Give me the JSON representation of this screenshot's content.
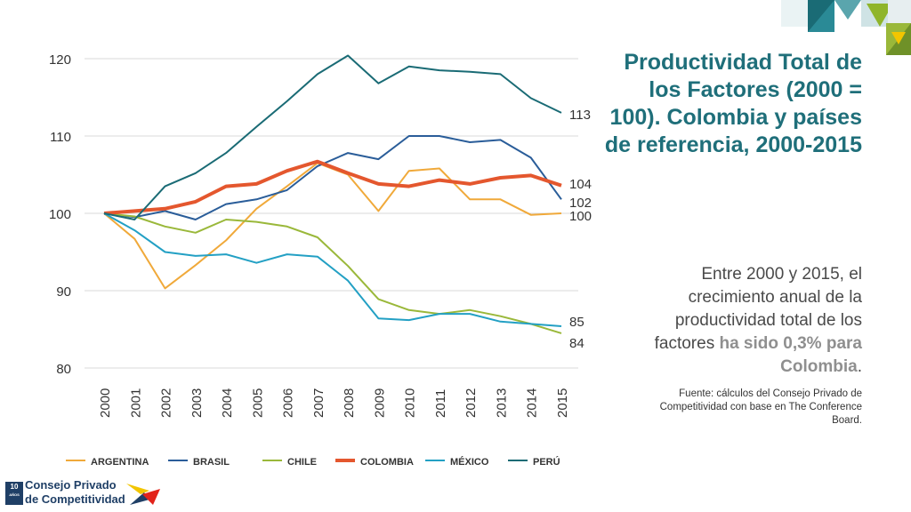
{
  "chart_data": {
    "type": "line",
    "title": "",
    "xlabel": "",
    "ylabel": "",
    "ylim": [
      80,
      120
    ],
    "yticks": [
      80,
      90,
      100,
      110,
      120
    ],
    "x": [
      "2000",
      "2001",
      "2002",
      "2003",
      "2004",
      "2005",
      "2006",
      "2007",
      "2008",
      "2009",
      "2010",
      "2011",
      "2012",
      "2013",
      "2014",
      "2015"
    ],
    "series": [
      {
        "name": "ARGENTINA",
        "color": "#f0a93a",
        "width": 2,
        "values": [
          100,
          96.7,
          90.3,
          93.3,
          96.5,
          100.6,
          103.5,
          106.5,
          105.0,
          100.3,
          105.5,
          105.8,
          101.8,
          101.8,
          99.8,
          100.0
        ]
      },
      {
        "name": "BRASIL",
        "color": "#2a5d99",
        "width": 2,
        "values": [
          100,
          99.5,
          100.3,
          99.2,
          101.2,
          101.8,
          103.0,
          106.1,
          107.8,
          107.0,
          110.0,
          110.0,
          109.2,
          109.5,
          107.2,
          101.8
        ]
      },
      {
        "name": "CHILE",
        "color": "#9ab83a",
        "width": 2,
        "values": [
          100,
          99.6,
          98.3,
          97.5,
          99.2,
          98.9,
          98.3,
          96.9,
          93.2,
          88.9,
          87.5,
          87.0,
          87.5,
          86.7,
          85.7,
          84.5
        ]
      },
      {
        "name": "COLOMBIA",
        "color": "#e4572e",
        "width": 4,
        "values": [
          100,
          100.3,
          100.6,
          101.5,
          103.5,
          103.8,
          105.5,
          106.7,
          105.2,
          103.8,
          103.5,
          104.3,
          103.8,
          104.6,
          104.9,
          103.6
        ]
      },
      {
        "name": "MÉXICO",
        "color": "#23a0c4",
        "width": 2,
        "values": [
          100,
          97.8,
          95.0,
          94.5,
          94.7,
          93.6,
          94.7,
          94.4,
          91.3,
          86.4,
          86.2,
          87.0,
          87.0,
          86.0,
          85.7,
          85.4
        ]
      },
      {
        "name": "PERÚ",
        "color": "#1a6b75",
        "width": 2,
        "values": [
          100,
          99.2,
          103.5,
          105.2,
          107.8,
          111.2,
          114.5,
          118.0,
          120.4,
          116.8,
          119.0,
          118.5,
          118.3,
          118.0,
          114.9,
          113.0
        ]
      }
    ],
    "end_labels": [
      "113",
      "104",
      "102",
      "100",
      "85",
      "84"
    ]
  },
  "title": "Productividad Total de los Factores (2000 = 100). Colombia y países de referencia, 2000-2015",
  "body": {
    "part1": "Entre 2000 y 2015, el crecimiento anual de la productividad total de los factores ",
    "highlight": "ha sido 0,3% para Colombia",
    "end": "."
  },
  "source": "Fuente: cálculos del Consejo Privado de Competitividad con base en The Conference Board.",
  "logo": {
    "badge": "10",
    "badge_sub": "AÑOS",
    "line1": "Consejo Privado",
    "line2": "de Competitividad"
  }
}
